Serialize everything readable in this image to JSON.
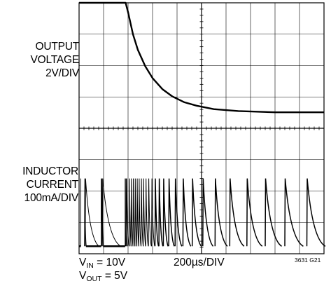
{
  "chart_data": {
    "type": "line",
    "title": "",
    "grid": true,
    "channels": [
      {
        "label_lines": [
          "OUTPUT",
          "VOLTAGE",
          "2V/DIV"
        ],
        "unit": "V",
        "volts_per_div": 2,
        "x_div": [
          0,
          1.9,
          2.0,
          2.2,
          2.4,
          2.7,
          3.0,
          3.4,
          3.8,
          4.3,
          4.8,
          5.5,
          6.5,
          8.0,
          10.0
        ],
        "y_div": [
          4.0,
          4.0,
          3.7,
          3.0,
          2.5,
          1.98,
          1.6,
          1.25,
          1.02,
          0.83,
          0.72,
          0.61,
          0.55,
          0.51,
          0.51
        ]
      },
      {
        "label_lines": [
          "INDUCTOR",
          "CURRENT",
          "100mA/DIV"
        ],
        "unit": "mA",
        "amps_per_div": 100,
        "baseline_div": 0.24,
        "peak_div": 2.4,
        "bursts": [
          [
            0.07,
            0.25
          ],
          [
            0.9,
            0.95
          ],
          [
            1.88,
            1.93
          ]
        ],
        "pulse_times_div": [
          0.22,
          0.25,
          0.92,
          0.95,
          1.9,
          1.93,
          2.05,
          2.12,
          2.2,
          2.28,
          2.36,
          2.44,
          2.53,
          2.62,
          2.72,
          2.83,
          2.96,
          3.1,
          3.26,
          3.44,
          3.66,
          3.92,
          4.24,
          4.62,
          5.05,
          5.55,
          6.15,
          6.85,
          7.6,
          8.4,
          9.3
        ]
      }
    ],
    "conditions": {
      "vin_text": "= 10V",
      "vout_text": "= 5V",
      "timebase": "200µs/DIV"
    },
    "figure_id": "3631 G21"
  },
  "colors": {
    "trace": "#000000",
    "grid": "#000000",
    "background": "#ffffff"
  }
}
